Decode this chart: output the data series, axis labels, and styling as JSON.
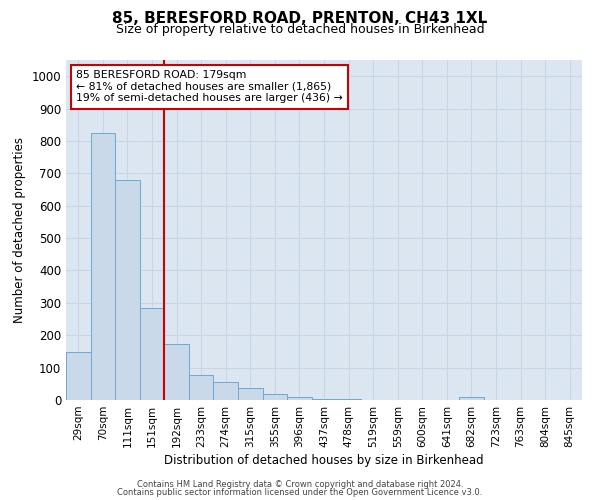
{
  "title1": "85, BERESFORD ROAD, PRENTON, CH43 1XL",
  "title2": "Size of property relative to detached houses in Birkenhead",
  "xlabel": "Distribution of detached houses by size in Birkenhead",
  "ylabel": "Number of detached properties",
  "categories": [
    "29sqm",
    "70sqm",
    "111sqm",
    "151sqm",
    "192sqm",
    "233sqm",
    "274sqm",
    "315sqm",
    "355sqm",
    "396sqm",
    "437sqm",
    "478sqm",
    "519sqm",
    "559sqm",
    "600sqm",
    "641sqm",
    "682sqm",
    "723sqm",
    "763sqm",
    "804sqm",
    "845sqm"
  ],
  "values": [
    148,
    825,
    678,
    284,
    172,
    78,
    55,
    38,
    20,
    8,
    4,
    4,
    0,
    0,
    0,
    0,
    10,
    0,
    0,
    0,
    0
  ],
  "bar_color": "#c9d9ea",
  "bar_edge_color": "#6aaad4",
  "vline_position": 3.5,
  "vline_color": "#cc0000",
  "annotation_text": "85 BERESFORD ROAD: 179sqm\n← 81% of detached houses are smaller (1,865)\n19% of semi-detached houses are larger (436) →",
  "annotation_box_facecolor": "#ffffff",
  "annotation_box_edgecolor": "#cc0000",
  "grid_color": "#c8d4e8",
  "plot_bg_color": "#dce6f0",
  "footnote1": "Contains HM Land Registry data © Crown copyright and database right 2024.",
  "footnote2": "Contains public sector information licensed under the Open Government Licence v3.0.",
  "ylim": [
    0,
    1050
  ],
  "yticks": [
    0,
    100,
    200,
    300,
    400,
    500,
    600,
    700,
    800,
    900,
    1000
  ]
}
